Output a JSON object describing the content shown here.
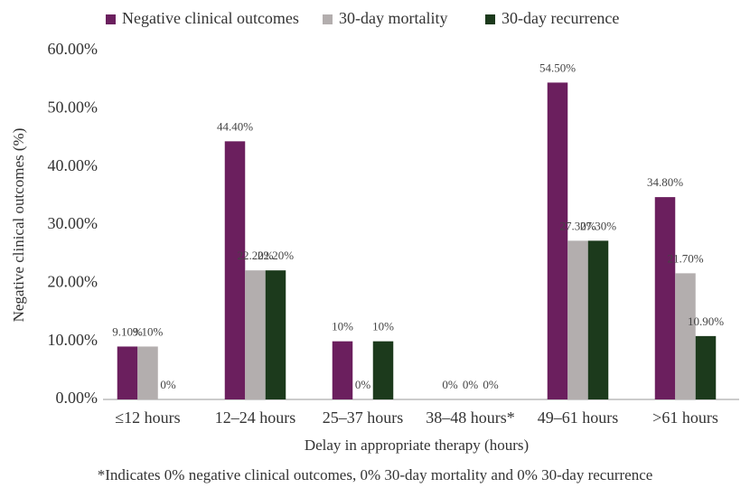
{
  "chart_data": {
    "type": "bar",
    "y_label": "Negative clinical outcomes (%)",
    "x_label": "Delay in appropriate therapy (hours)",
    "footnote": "*Indicates 0% negative clinical outcomes, 0% 30-day mortality and 0% 30-day recurrence",
    "categories": [
      "≤12 hours",
      "12–24 hours",
      "25–37 hours",
      "38–48 hours*",
      "49–61 hours",
      ">61 hours"
    ],
    "series": [
      {
        "name": "Negative clinical outcomes",
        "color": "#6b1f5e",
        "values": [
          9.1,
          44.4,
          10,
          0,
          54.5,
          34.8
        ],
        "value_labels": [
          "9.10%",
          "44.40%",
          "10%",
          "0%",
          "54.50%",
          "34.80%"
        ]
      },
      {
        "name": "30-day mortality",
        "color": "#b3aeae",
        "values": [
          9.1,
          22.2,
          0,
          0,
          27.3,
          21.7
        ],
        "value_labels": [
          "9.10%",
          "22.20%",
          "0%",
          "0%",
          "27.30%",
          "21.70%"
        ]
      },
      {
        "name": "30-day recurrence",
        "color": "#1c3a1c",
        "values": [
          0,
          22.2,
          10,
          0,
          27.3,
          10.9
        ],
        "value_labels": [
          "0%",
          "22.20%",
          "10%",
          "0%",
          "27.30%",
          "10.90%"
        ]
      }
    ],
    "ylim": [
      0,
      60
    ],
    "yticks": [
      {
        "value": 0,
        "label": "0.00%"
      },
      {
        "value": 10,
        "label": "10.00%"
      },
      {
        "value": 20,
        "label": "20.00%"
      },
      {
        "value": 30,
        "label": "30.00%"
      },
      {
        "value": 40,
        "label": "40.00%"
      },
      {
        "value": 50,
        "label": "50.00%"
      },
      {
        "value": 60,
        "label": "60.00%"
      }
    ],
    "grid": false,
    "legend": "top"
  }
}
